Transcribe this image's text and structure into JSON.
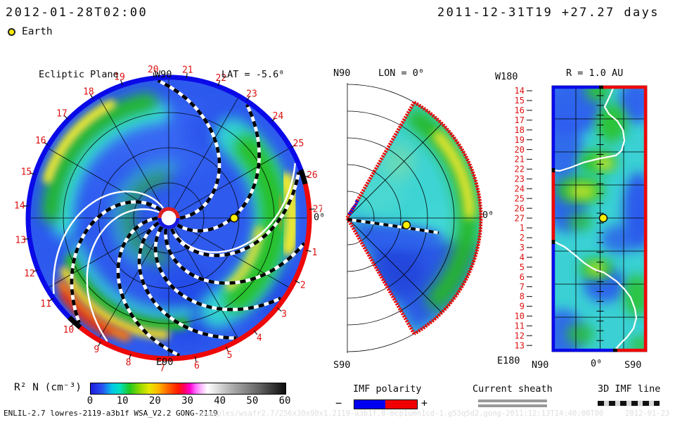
{
  "header": {
    "current_time": "2012-01-28T02:00",
    "run_label": "2011-12-31T19 +27.27 days",
    "earth_label": "Earth"
  },
  "panels": {
    "ecliptic": {
      "title": "Ecliptic Plane",
      "west_label": "W90",
      "east_label": "E90",
      "zero_label": "0⁰",
      "lat_label": "LAT = -5.6⁰",
      "day_labels": [
        "1",
        "2",
        "3",
        "4",
        "5",
        "6",
        "7",
        "8",
        "9",
        "10",
        "11",
        "12",
        "13",
        "14",
        "15",
        "16",
        "17",
        "18",
        "19",
        "20",
        "21",
        "22",
        "23",
        "24",
        "25",
        "26",
        "27"
      ]
    },
    "meridional": {
      "north_label": "N90",
      "title": "LON = 0⁰",
      "south_label": "S90",
      "zero_label": "0⁰"
    },
    "radial": {
      "title": "R = 1.0 AU",
      "top_left_label": "W180",
      "bottom_left_label": "E180",
      "x_left": "N90",
      "x_center": "0⁰",
      "x_right": "S90",
      "day_labels": [
        "14",
        "15",
        "16",
        "17",
        "18",
        "19",
        "20",
        "21",
        "22",
        "23",
        "24",
        "25",
        "26",
        "27",
        "1",
        "2",
        "3",
        "4",
        "5",
        "6",
        "7",
        "8",
        "9",
        "10",
        "11",
        "12",
        "13"
      ]
    }
  },
  "colorbar": {
    "units_label": "R² N (cm⁻³)",
    "min": 0,
    "max": 60,
    "ticks": [
      0,
      10,
      20,
      30,
      40,
      50,
      60
    ],
    "stops": [
      [
        0,
        "#1c1cdc"
      ],
      [
        0.06,
        "#2a52f0"
      ],
      [
        0.11,
        "#00c8e8"
      ],
      [
        0.15,
        "#00e0c0"
      ],
      [
        0.2,
        "#20c820"
      ],
      [
        0.25,
        "#90d800"
      ],
      [
        0.3,
        "#e8e800"
      ],
      [
        0.35,
        "#ffb400"
      ],
      [
        0.4,
        "#ff6000"
      ],
      [
        0.45,
        "#ff1800"
      ],
      [
        0.48,
        "#ff0060"
      ],
      [
        0.51,
        "#ff00d0"
      ],
      [
        0.54,
        "#ff70ff"
      ],
      [
        0.57,
        "#ffc0ff"
      ],
      [
        0.6,
        "#ffffff"
      ],
      [
        0.72,
        "#b0b0b0"
      ],
      [
        0.87,
        "#606060"
      ],
      [
        1,
        "#0c0c0c"
      ]
    ]
  },
  "legend": {
    "imf": {
      "title": "IMF polarity",
      "minus": "−",
      "plus": "+",
      "neg_color": "#0000f0",
      "pos_color": "#f00000"
    },
    "current_sheet": {
      "title": "Current sheath"
    },
    "imf_line": {
      "title": "3D IMF line"
    }
  },
  "footer": {
    "credit": "ENLIL-2.7 lowres-2119-a3b1f WSA_V2.2 GONG-2119",
    "watermark": "examples/wsafr2.7/256x30x90x1.2119-a3b1f.8-mcp1umn1cd-1.g53q5d2.gong-2011:12:13T14:40:00T00",
    "watermark_date": "2012-01-23"
  },
  "chart_data": [
    {
      "type": "heatmap",
      "title": "Ecliptic Plane",
      "projection": "polar slice at LAT = -5.6⁰, Sun at center, radius to ~2 AU",
      "quantity": "R² N (cm⁻³)",
      "color_range": [
        0,
        60
      ],
      "angular_ticks_days": [
        1,
        2,
        3,
        4,
        5,
        6,
        7,
        8,
        9,
        10,
        11,
        12,
        13,
        14,
        15,
        16,
        17,
        18,
        19,
        20,
        21,
        22,
        23,
        24,
        25,
        26,
        27
      ],
      "angular_tick_meaning": "day of month along 27.27-day solar rotation, increasing clockwise from 0⁰ at right",
      "cardinal_labels": {
        "top": "W90",
        "bottom": "E90",
        "right": "0⁰"
      },
      "markers": [
        {
          "name": "Earth",
          "symbol": "yellow dot",
          "position": "on 0⁰ line at ~0.46 of disk radius"
        }
      ],
      "overlays": [
        "black/white dashed Parker-spiral 3D IMF lines fanning from inner boundary",
        "white current sheet contour spirals",
        "rim IMF polarity: blue (−) from ~day 26 counterclockwise over W90 to ~day 10, red (+) from ~day 10 over E90 to ~day 26, black marks at transitions",
        "inner boundary ring red on top / blue on bottom around white core"
      ],
      "features": [
        "yellow-green spiral arm near rim days 16-19 curving inward",
        "broad green arm with yellow core along right limb days 25 to 4 near 0⁰",
        "intense red-orange crescent hugging rim days 8.5-11",
        "ambient royal-blue slow wind elsewhere; grid: 3 radial circles + 30° spokes"
      ]
    },
    {
      "type": "heatmap",
      "title": "Meridional plane LON = 0⁰",
      "projection": "polar half-plane N90 (up) to S90 (down); colored wedge spans ±60° latitude",
      "quantity": "R² N (cm⁻³)",
      "color_range": [
        0,
        60
      ],
      "labels": {
        "top": "N90",
        "bottom": "S90",
        "right": "0⁰"
      },
      "markers": [
        {
          "name": "Earth",
          "symbol": "yellow dot",
          "position": "on equator at ~0.45 of wedge radius"
        }
      ],
      "overlays": [
        "red boundary around wedge with small blue (−) segment near apex top edge",
        "dashed IMF line running through Earth slightly southward"
      ],
      "features": [
        "teal/cyan mid-latitudes with yellow-green high-density arc near outer edge in northern half",
        "dark blue low-density region filling southern half of wedge",
        "grid: 5 radial arcs and ±45° spokes"
      ]
    },
    {
      "type": "heatmap",
      "title": "R = 1.0 AU",
      "projection": "latitude (x: N90 → 0⁰ → S90) versus time (y: day 14 top → 27 → 13 bottom, W180 to E180)",
      "quantity": "R² N (cm⁻³)",
      "color_range": [
        0,
        60
      ],
      "y_ticks_days": [
        "14",
        "15",
        "16",
        "17",
        "18",
        "19",
        "20",
        "21",
        "22",
        "23",
        "24",
        "25",
        "26",
        "27",
        "1",
        "2",
        "3",
        "4",
        "5",
        "6",
        "7",
        "8",
        "9",
        "10",
        "11",
        "12",
        "13"
      ],
      "x_labels": [
        "N90",
        "0⁰",
        "S90"
      ],
      "markers": [
        {
          "name": "Earth",
          "symbol": "yellow dot",
          "position": "just south of 0⁰ at day ~27"
        }
      ],
      "overlays": [
        "white current-sheet contour meandering down the panel",
        "border IMF polarity: left edge blue/red/blue (transitions ~day 22.5 and ~day 2.5), right edge red, top and bottom edges split blue|red near center"
      ],
      "features": [
        "cyan background with green blobs near days 14-18 north-center",
        "yellow high-density spot day ~21 south of center",
        "yellow-green blob days 23-24 north-center, green blob day ~5.5 at 0⁰",
        "blue low-density bands days 24-3 at far south and days 17-20 far north"
      ]
    }
  ]
}
